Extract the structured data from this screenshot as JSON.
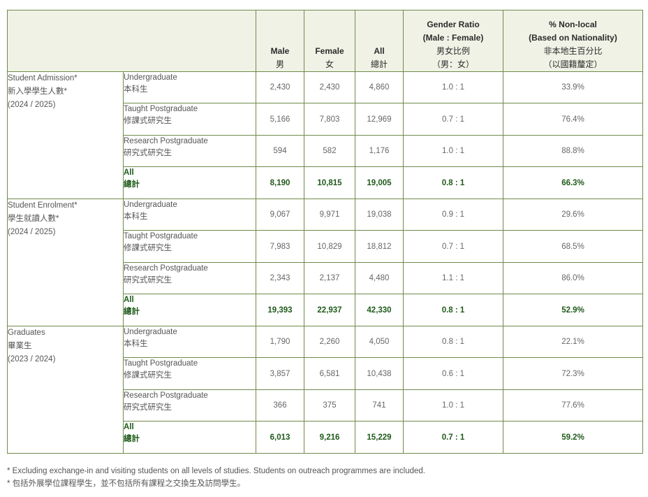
{
  "header": {
    "male_en": "Male",
    "male_zh": "男",
    "female_en": "Female",
    "female_zh": "女",
    "all_en": "All",
    "all_zh": "總計",
    "ratio_en1": "Gender Ratio",
    "ratio_en2": "(Male : Female)",
    "ratio_zh1": "男女比例",
    "ratio_zh2": "（男：女）",
    "nonlocal_en1": "% Non-local",
    "nonlocal_en2": "(Based on Nationality)",
    "nonlocal_zh1": "非本地生百分比",
    "nonlocal_zh2": "（以國籍釐定）"
  },
  "groups": [
    {
      "title_en": "Student Admission*",
      "title_zh": "新入學學生人數*",
      "period": "(2024 / 2025)",
      "rows": [
        {
          "en": "Undergraduate",
          "zh": "本科生",
          "male": "2,430",
          "female": "2,430",
          "all": "4,860",
          "ratio": "1.0 : 1",
          "nonlocal": "33.9%"
        },
        {
          "en": "Taught Postgraduate",
          "zh": "修課式研究生",
          "male": "5,166",
          "female": "7,803",
          "all": "12,969",
          "ratio": "0.7 : 1",
          "nonlocal": "76.4%"
        },
        {
          "en": "Research Postgraduate",
          "zh": "研究式研究生",
          "male": "594",
          "female": "582",
          "all": "1,176",
          "ratio": "1.0 : 1",
          "nonlocal": "88.8%"
        },
        {
          "en": "All",
          "zh": "總計",
          "male": "8,190",
          "female": "10,815",
          "all": "19,005",
          "ratio": "0.8 : 1",
          "nonlocal": "66.3%"
        }
      ]
    },
    {
      "title_en": "Student Enrolment*",
      "title_zh": "學生就讀人數*",
      "period": "(2024 / 2025)",
      "rows": [
        {
          "en": "Undergraduate",
          "zh": "本科生",
          "male": "9,067",
          "female": "9,971",
          "all": "19,038",
          "ratio": "0.9 : 1",
          "nonlocal": "29.6%"
        },
        {
          "en": "Taught Postgraduate",
          "zh": "修課式研究生",
          "male": "7,983",
          "female": "10,829",
          "all": "18,812",
          "ratio": "0.7 : 1",
          "nonlocal": "68.5%"
        },
        {
          "en": "Research Postgraduate",
          "zh": "研究式研究生",
          "male": "2,343",
          "female": "2,137",
          "all": "4,480",
          "ratio": "1.1 : 1",
          "nonlocal": "86.0%"
        },
        {
          "en": "All",
          "zh": "總計",
          "male": "19,393",
          "female": "22,937",
          "all": "42,330",
          "ratio": "0.8 : 1",
          "nonlocal": "52.9%"
        }
      ]
    },
    {
      "title_en": "Graduates",
      "title_zh": "畢業生",
      "period": "(2023 / 2024)",
      "rows": [
        {
          "en": "Undergraduate",
          "zh": "本科生",
          "male": "1,790",
          "female": "2,260",
          "all": "4,050",
          "ratio": "0.8 : 1",
          "nonlocal": "22.1%"
        },
        {
          "en": "Taught Postgraduate",
          "zh": "修課式研究生",
          "male": "3,857",
          "female": "6,581",
          "all": "10,438",
          "ratio": "0.6 : 1",
          "nonlocal": "72.3%"
        },
        {
          "en": "Research Postgraduate",
          "zh": "研究式研究生",
          "male": "366",
          "female": "375",
          "all": "741",
          "ratio": "1.0 : 1",
          "nonlocal": "77.6%"
        },
        {
          "en": "All",
          "zh": "總計",
          "male": "6,013",
          "female": "9,216",
          "all": "15,229",
          "ratio": "0.7 : 1",
          "nonlocal": "59.2%"
        }
      ]
    }
  ],
  "notes": {
    "en": "* Excluding exchange-in and visiting students on all levels of studies. Students on outreach programmes are included.",
    "zh": "* 包括外展學位課程學生，並不包括所有課程之交換生及訪問學生。"
  }
}
